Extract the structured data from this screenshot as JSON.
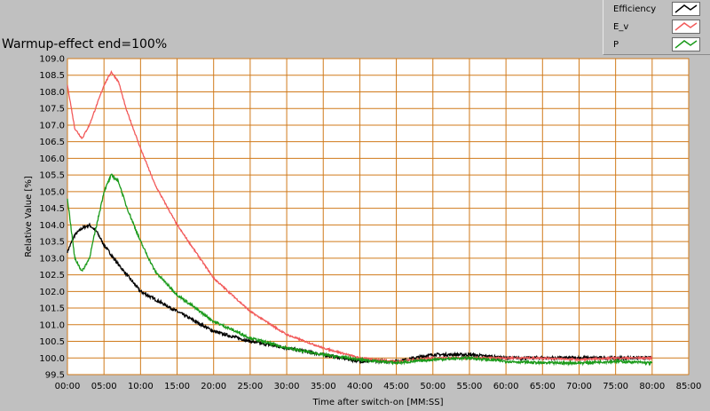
{
  "title": "Warmup-effect end=100%",
  "colors": {
    "background": "#c0c0c0",
    "plot_background": "#ffffff",
    "grid": "#d07a1a",
    "efficiency": "#000000",
    "e_v": "#f25a5a",
    "p": "#1a9a1a"
  },
  "legend": {
    "items": [
      {
        "label": "Efficiency",
        "color": "#000000"
      },
      {
        "label": "E_v",
        "color": "#f25a5a"
      },
      {
        "label": "P",
        "color": "#1a9a1a"
      }
    ]
  },
  "chart_data": {
    "type": "line",
    "title": "Warmup-effect end=100%",
    "xlabel": "Time after switch-on [MM:SS]",
    "ylabel": "Relative Value [%]",
    "xlim": [
      "00:00",
      "85:00"
    ],
    "ylim": [
      99.5,
      109.0
    ],
    "x_ticks": [
      "00:00",
      "05:00",
      "10:00",
      "15:00",
      "20:00",
      "25:00",
      "30:00",
      "35:00",
      "40:00",
      "45:00",
      "50:00",
      "55:00",
      "60:00",
      "65:00",
      "70:00",
      "75:00",
      "80:00",
      "85:00"
    ],
    "y_ticks": [
      "99.5",
      "100.0",
      "100.5",
      "101.0",
      "101.5",
      "102.0",
      "102.5",
      "103.0",
      "103.5",
      "104.0",
      "104.5",
      "105.0",
      "105.5",
      "106.0",
      "106.5",
      "107.0",
      "107.5",
      "108.0",
      "108.5",
      "109.0"
    ],
    "grid": true,
    "legend_position": "top-right",
    "series": [
      {
        "name": "Efficiency",
        "x": [
          "00:00",
          "01:00",
          "02:00",
          "03:00",
          "04:00",
          "05:00",
          "07:00",
          "10:00",
          "15:00",
          "20:00",
          "25:00",
          "30:00",
          "35:00",
          "40:00",
          "45:00",
          "50:00",
          "55:00",
          "60:00",
          "65:00",
          "70:00",
          "75:00",
          "80:00"
        ],
        "values": [
          103.2,
          103.7,
          103.9,
          104.0,
          103.8,
          103.4,
          102.8,
          102.0,
          101.4,
          100.8,
          100.5,
          100.3,
          100.1,
          99.9,
          99.9,
          100.1,
          100.1,
          100.0,
          100.0,
          100.0,
          100.0,
          100.0
        ]
      },
      {
        "name": "E_v",
        "x": [
          "00:00",
          "01:00",
          "02:00",
          "03:00",
          "04:00",
          "05:00",
          "06:00",
          "07:00",
          "08:00",
          "10:00",
          "12:00",
          "15:00",
          "20:00",
          "25:00",
          "30:00",
          "35:00",
          "40:00",
          "45:00",
          "50:00",
          "55:00",
          "60:00",
          "65:00",
          "70:00",
          "75:00",
          "80:00"
        ],
        "values": [
          108.2,
          106.9,
          106.6,
          107.0,
          107.6,
          108.2,
          108.6,
          108.3,
          107.5,
          106.3,
          105.2,
          104.0,
          102.4,
          101.4,
          100.7,
          100.3,
          100.0,
          99.9,
          100.0,
          100.0,
          100.0,
          100.0,
          99.95,
          100.0,
          100.0
        ]
      },
      {
        "name": "P",
        "x": [
          "00:00",
          "01:00",
          "02:00",
          "03:00",
          "04:00",
          "05:00",
          "06:00",
          "07:00",
          "08:00",
          "10:00",
          "12:00",
          "15:00",
          "20:00",
          "25:00",
          "30:00",
          "35:00",
          "40:00",
          "45:00",
          "50:00",
          "55:00",
          "60:00",
          "65:00",
          "70:00",
          "75:00",
          "80:00"
        ],
        "values": [
          104.8,
          103.0,
          102.6,
          103.0,
          104.0,
          105.0,
          105.5,
          105.3,
          104.6,
          103.5,
          102.6,
          101.9,
          101.1,
          100.6,
          100.3,
          100.1,
          99.95,
          99.85,
          99.95,
          100.0,
          99.9,
          99.85,
          99.85,
          99.9,
          99.85
        ]
      }
    ]
  }
}
